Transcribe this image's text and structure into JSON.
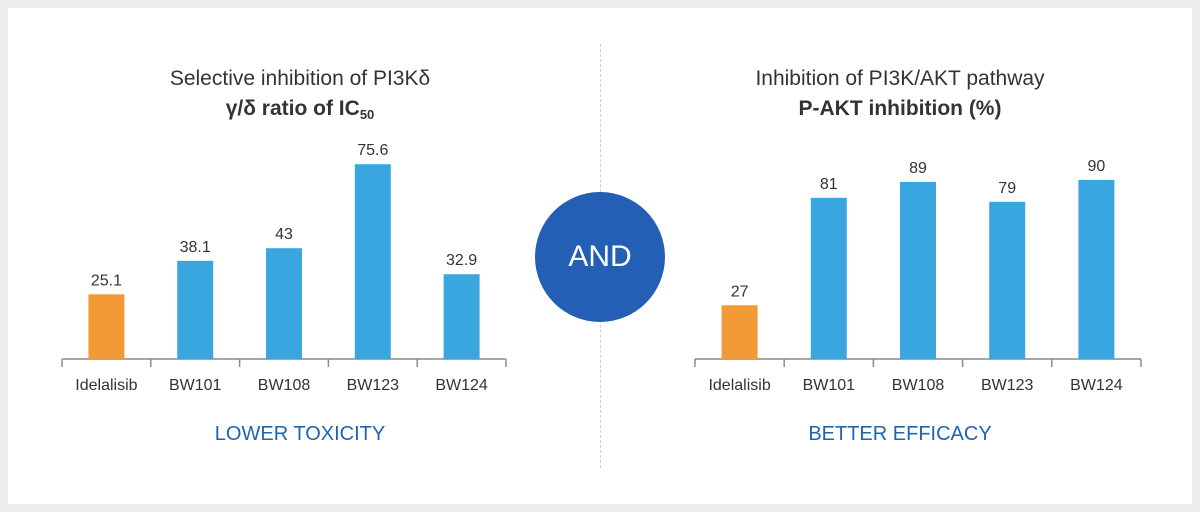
{
  "chart_data": [
    {
      "type": "bar",
      "title": "Selective inhibition of PI3Kδ",
      "subtitle_main": "γ/δ ratio of IC",
      "subtitle_sub": "50",
      "caption": "LOWER TOXICITY",
      "categories": [
        "Idelalisib",
        "BW101",
        "BW108",
        "BW123",
        "BW124"
      ],
      "values": [
        25.1,
        38.1,
        43,
        75.6,
        32.9
      ],
      "value_labels": [
        "25.1",
        "38.1",
        "43",
        "75.6",
        "32.9"
      ],
      "colors": [
        "#f29a35",
        "#3aa6e0",
        "#3aa6e0",
        "#3aa6e0",
        "#3aa6e0"
      ],
      "ylim": [
        0,
        85
      ]
    },
    {
      "type": "bar",
      "title": "Inhibition of PI3K/AKT pathway",
      "subtitle_main": "P-AKT inhibition (%)",
      "subtitle_sub": "",
      "caption": "BETTER EFFICACY",
      "categories": [
        "Idelalisib",
        "BW101",
        "BW108",
        "BW123",
        "BW124"
      ],
      "values": [
        27,
        81,
        89,
        79,
        90
      ],
      "value_labels": [
        "27",
        "81",
        "89",
        "79",
        "90"
      ],
      "colors": [
        "#f29a35",
        "#3aa6e0",
        "#3aa6e0",
        "#3aa6e0",
        "#3aa6e0"
      ],
      "ylim": [
        0,
        100
      ]
    }
  ],
  "connector": {
    "label": "AND"
  }
}
